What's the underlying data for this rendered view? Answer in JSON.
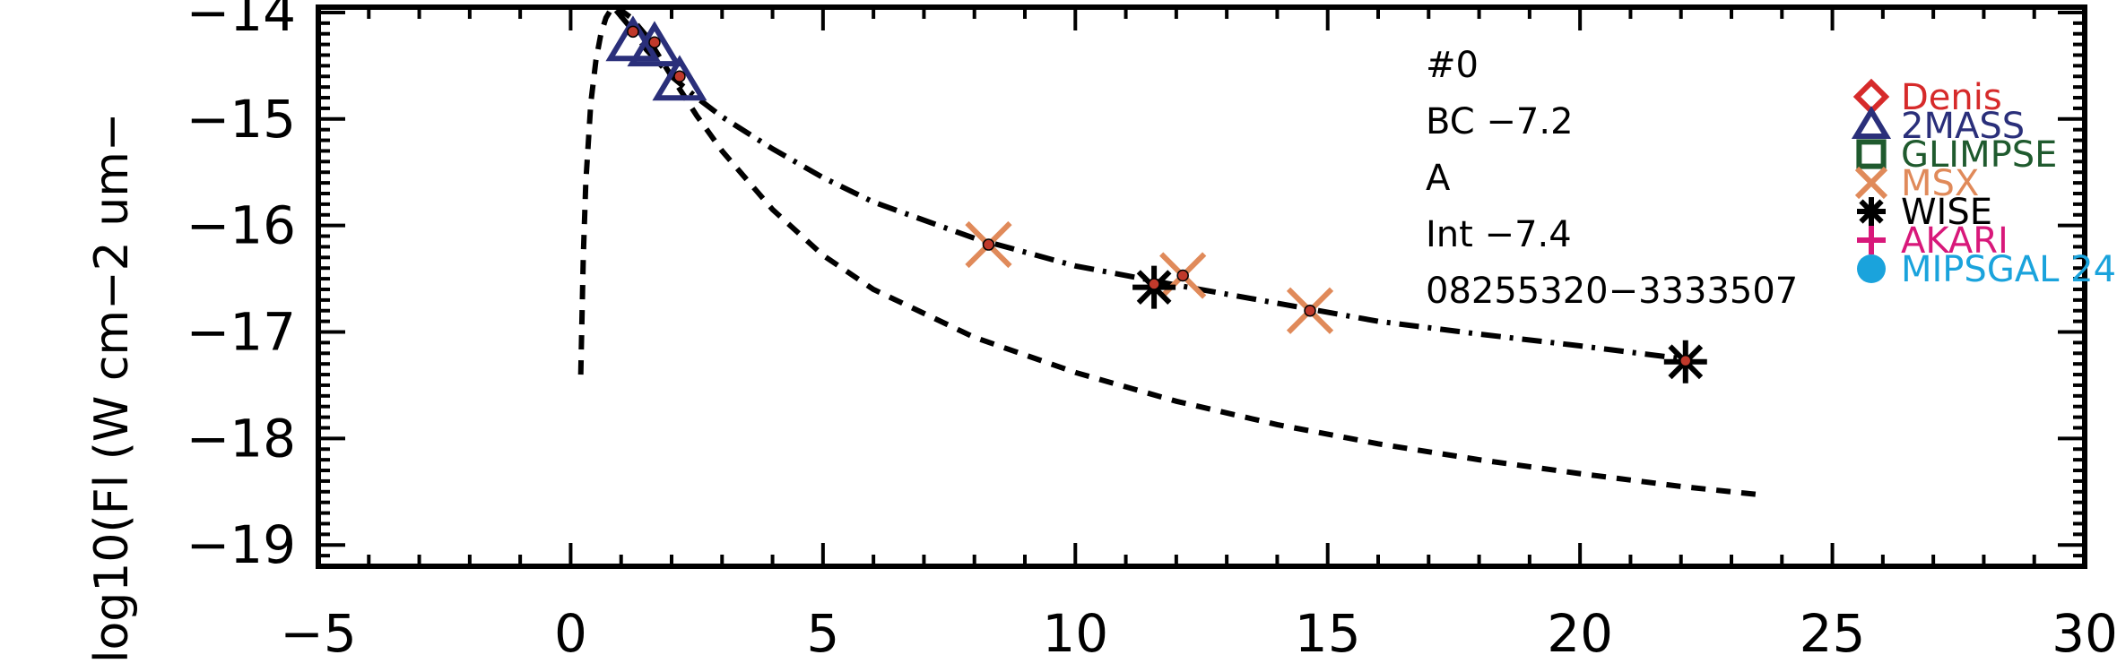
{
  "chart_data": {
    "type": "scatter",
    "title": "",
    "xlabel": "",
    "ylabel": "log10(Fl (W cm−2 um−",
    "xlim": [
      -5,
      30
    ],
    "ylim": [
      -19.2,
      -13.95
    ],
    "x_ticks": [
      -5,
      0,
      5,
      10,
      15,
      20,
      25,
      30
    ],
    "x_tick_labels": [
      "−5",
      "0",
      "5",
      "10",
      "15",
      "20",
      "25",
      "30"
    ],
    "y_ticks": [
      -14,
      -15,
      -16,
      -17,
      -18,
      -19
    ],
    "y_tick_labels": [
      "−14",
      "−15",
      "−16",
      "−17",
      "−18",
      "−19"
    ],
    "annotations": [
      {
        "text": "#0"
      },
      {
        "text": "BC  −7.2"
      },
      {
        "text": "A"
      },
      {
        "text": "Int  −7.4"
      },
      {
        "text": "08255320−3333507"
      }
    ],
    "legend": {
      "placement": "right",
      "entries": [
        {
          "name": "Denis",
          "marker": "diamond",
          "color": "#d62a2a"
        },
        {
          "name": "2MASS",
          "marker": "triangle",
          "color": "#2a2f7a"
        },
        {
          "name": "GLIMPSE",
          "marker": "square",
          "color": "#1f5a2e"
        },
        {
          "name": "MSX",
          "marker": "x",
          "color": "#e08a5a"
        },
        {
          "name": "WISE",
          "marker": "asterisk",
          "color": "#000000"
        },
        {
          "name": "AKARI",
          "marker": "plus",
          "color": "#d8187a"
        },
        {
          "name": "MIPSGAL 24",
          "marker": "circle",
          "color": "#1aa3dc"
        }
      ]
    },
    "series": [
      {
        "survey": "2MASS",
        "x": [
          1.235,
          1.662,
          2.159
        ],
        "y": [
          -14.28,
          -14.33,
          -14.65
        ]
      },
      {
        "survey": "MSX",
        "x": [
          8.28,
          12.13,
          14.65
        ],
        "y": [
          -16.18,
          -16.47,
          -16.8
        ]
      },
      {
        "survey": "WISE",
        "x": [
          11.56,
          22.09
        ],
        "y": [
          -16.58,
          -17.28
        ]
      }
    ],
    "data_dots": {
      "color": "#c0392b",
      "x": [
        1.235,
        1.662,
        2.159,
        8.28,
        11.56,
        12.13,
        14.65,
        22.09
      ],
      "y": [
        -14.18,
        -14.28,
        -14.6,
        -16.18,
        -16.55,
        -16.47,
        -16.8,
        -17.27
      ]
    },
    "curves": [
      {
        "style": "dashed",
        "x": [
          0.2,
          0.25,
          0.3,
          0.4,
          0.5,
          0.6,
          0.7,
          0.8,
          0.9,
          1.0,
          1.2,
          1.5,
          2.0,
          2.5,
          3,
          4,
          5,
          6,
          8,
          10,
          12,
          14,
          16,
          18,
          20,
          22,
          23.6
        ],
        "y": [
          -17.4,
          -16.3,
          -15.6,
          -14.85,
          -14.45,
          -14.2,
          -14.05,
          -13.97,
          -13.95,
          -13.98,
          -14.05,
          -14.22,
          -14.6,
          -14.97,
          -15.3,
          -15.85,
          -16.28,
          -16.6,
          -17.05,
          -17.38,
          -17.65,
          -17.87,
          -18.05,
          -18.2,
          -18.33,
          -18.45,
          -18.53
        ]
      },
      {
        "style": "dashdot",
        "x": [
          0.9,
          1.2,
          1.5,
          2.0,
          2.5,
          3,
          4,
          5,
          6,
          8,
          10,
          12,
          14,
          16,
          18,
          20,
          22
        ],
        "y": [
          -13.98,
          -14.15,
          -14.35,
          -14.6,
          -14.8,
          -14.98,
          -15.28,
          -15.55,
          -15.78,
          -16.12,
          -16.38,
          -16.56,
          -16.73,
          -16.9,
          -17.02,
          -17.13,
          -17.25
        ]
      }
    ]
  }
}
